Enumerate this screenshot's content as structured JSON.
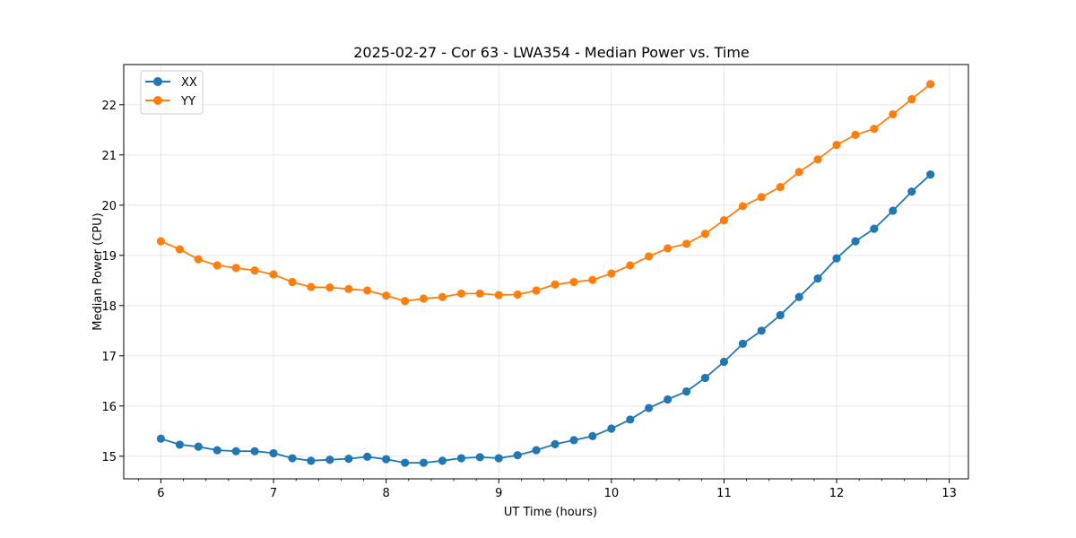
{
  "chart_data": {
    "type": "line",
    "title": "2025-02-27 - Cor 63 - LWA354 - Median Power vs. Time",
    "xlabel": "UT Time (hours)",
    "ylabel": "Median Power (CPU)",
    "xlim": [
      5.67,
      13.17
    ],
    "ylim": [
      14.55,
      22.8
    ],
    "x_ticks": [
      6,
      7,
      8,
      9,
      10,
      11,
      12,
      13
    ],
    "y_ticks": [
      15,
      16,
      17,
      18,
      19,
      20,
      21,
      22
    ],
    "grid": true,
    "legend_position": "top-left",
    "x": [
      6.0,
      6.167,
      6.333,
      6.5,
      6.667,
      6.833,
      7.0,
      7.167,
      7.333,
      7.5,
      7.667,
      7.833,
      8.0,
      8.167,
      8.333,
      8.5,
      8.667,
      8.833,
      9.0,
      9.167,
      9.333,
      9.5,
      9.667,
      9.833,
      10.0,
      10.167,
      10.333,
      10.5,
      10.667,
      10.833,
      11.0,
      11.167,
      11.333,
      11.5,
      11.667,
      11.833,
      12.0,
      12.167,
      12.333,
      12.5,
      12.667,
      12.833
    ],
    "series": [
      {
        "name": "XX",
        "color": "#1f77b4",
        "values": [
          15.35,
          15.23,
          15.19,
          15.12,
          15.1,
          15.1,
          15.06,
          14.96,
          14.91,
          14.93,
          14.95,
          14.99,
          14.94,
          14.87,
          14.87,
          14.91,
          14.96,
          14.98,
          14.96,
          15.02,
          15.12,
          15.24,
          15.32,
          15.4,
          15.55,
          15.73,
          15.96,
          16.13,
          16.29,
          16.56,
          16.88,
          17.24,
          17.5,
          17.81,
          18.17,
          18.54,
          18.94,
          19.28,
          19.53,
          19.89,
          20.27,
          20.61
        ]
      },
      {
        "name": "YY",
        "color": "#ff7f0e",
        "values": [
          19.28,
          19.12,
          18.92,
          18.8,
          18.75,
          18.7,
          18.62,
          18.47,
          18.37,
          18.36,
          18.33,
          18.3,
          18.2,
          18.09,
          18.14,
          18.17,
          18.24,
          18.24,
          18.21,
          18.22,
          18.3,
          18.42,
          18.47,
          18.51,
          18.64,
          18.8,
          18.98,
          19.14,
          19.23,
          19.43,
          19.7,
          19.98,
          20.16,
          20.36,
          20.66,
          20.91,
          21.2,
          21.4,
          21.52,
          21.81,
          22.11,
          22.41
        ]
      }
    ]
  }
}
